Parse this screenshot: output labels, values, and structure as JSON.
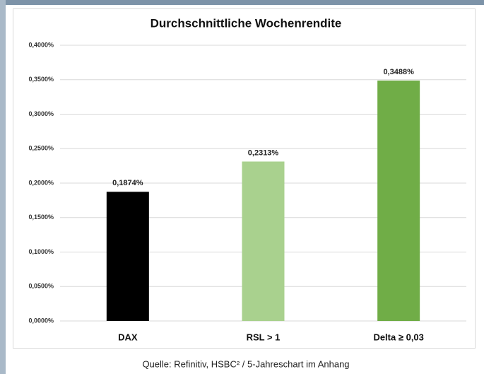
{
  "chart_data": {
    "type": "bar",
    "title": "Durchschnittliche Wochenrendite",
    "categories": [
      "DAX",
      "RSL > 1",
      "Delta ≥ 0,03"
    ],
    "values": [
      0.1874,
      0.2313,
      0.3488
    ],
    "value_labels": [
      "0,1874%",
      "0,2313%",
      "0,3488%"
    ],
    "colors": [
      "#000000",
      "#a9d18e",
      "#70ad47"
    ],
    "ylim": [
      0,
      0.4
    ],
    "yticks": [
      {
        "value": 0,
        "label": "0,0000%"
      },
      {
        "value": 0.05,
        "label": "0,0500%"
      },
      {
        "value": 0.1,
        "label": "0,1000%"
      },
      {
        "value": 0.15,
        "label": "0,1500%"
      },
      {
        "value": 0.2,
        "label": "0,2000%"
      },
      {
        "value": 0.25,
        "label": "0,2500%"
      },
      {
        "value": 0.3,
        "label": "0,3000%"
      },
      {
        "value": 0.35,
        "label": "0,3500%"
      },
      {
        "value": 0.4,
        "label": "0,4000%"
      }
    ],
    "grid": true
  },
  "caption": "Quelle: Refinitiv, HSBC² / 5-Jahreschart im Anhang"
}
